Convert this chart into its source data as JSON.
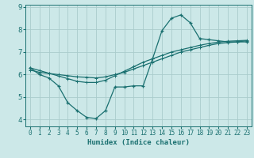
{
  "x": [
    0,
    1,
    2,
    3,
    4,
    5,
    6,
    7,
    8,
    9,
    10,
    11,
    12,
    13,
    14,
    15,
    16,
    17,
    18,
    19,
    20,
    21,
    22,
    23
  ],
  "line_main": [
    6.3,
    6.0,
    5.85,
    5.5,
    4.75,
    4.4,
    4.1,
    4.05,
    4.4,
    5.45,
    5.45,
    5.5,
    5.5,
    6.7,
    7.95,
    8.5,
    8.65,
    8.3,
    7.6,
    7.55,
    7.5,
    7.45,
    7.45,
    7.45
  ],
  "line_trend1": [
    6.2,
    6.1,
    6.05,
    6.0,
    5.95,
    5.9,
    5.88,
    5.85,
    5.9,
    6.0,
    6.1,
    6.25,
    6.4,
    6.55,
    6.7,
    6.85,
    7.0,
    7.1,
    7.2,
    7.3,
    7.38,
    7.42,
    7.45,
    7.5
  ],
  "line_trend2": [
    6.3,
    6.18,
    6.06,
    5.94,
    5.82,
    5.7,
    5.65,
    5.65,
    5.75,
    5.95,
    6.15,
    6.35,
    6.55,
    6.7,
    6.85,
    7.0,
    7.1,
    7.2,
    7.3,
    7.38,
    7.44,
    7.48,
    7.5,
    7.52
  ],
  "bg_color": "#cce8e8",
  "grid_color": "#aacccc",
  "line_color": "#1a7070",
  "xlabel": "Humidex (Indice chaleur)",
  "ylim": [
    3.7,
    9.1
  ],
  "xlim": [
    -0.5,
    23.5
  ],
  "yticks": [
    4,
    5,
    6,
    7,
    8,
    9
  ],
  "xticks": [
    0,
    1,
    2,
    3,
    4,
    5,
    6,
    7,
    8,
    9,
    10,
    11,
    12,
    13,
    14,
    15,
    16,
    17,
    18,
    19,
    20,
    21,
    22,
    23
  ]
}
